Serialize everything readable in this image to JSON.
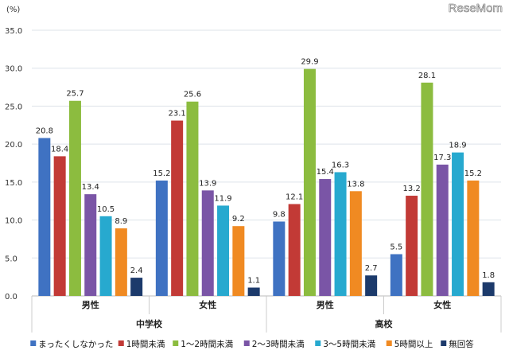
{
  "chart_data": {
    "type": "bar",
    "unit_label": "(%)",
    "watermark": "ReseMom",
    "ylim": [
      0,
      35
    ],
    "yticks": [
      "0.0",
      "5.0",
      "10.0",
      "15.0",
      "20.0",
      "25.0",
      "30.0",
      "35.0"
    ],
    "grid": true,
    "legend_position": "bottom",
    "groups": [
      {
        "label": "中学校",
        "categories": [
          "男性",
          "女性"
        ]
      },
      {
        "label": "高校",
        "categories": [
          "男性",
          "女性"
        ]
      }
    ],
    "categories": [
      "中学校 男性",
      "中学校 女性",
      "高校 男性",
      "高校 女性"
    ],
    "series": [
      {
        "name": "まったくしなかった",
        "color": "#3f72c2",
        "values": [
          20.8,
          15.2,
          9.8,
          5.5
        ]
      },
      {
        "name": "1時間未満",
        "color": "#c23a36",
        "values": [
          18.4,
          23.1,
          12.1,
          13.2
        ]
      },
      {
        "name": "1～2時間未満",
        "color": "#8cbc3f",
        "values": [
          25.7,
          25.6,
          29.9,
          28.1
        ]
      },
      {
        "name": "2～3時間未満",
        "color": "#7a55a6",
        "values": [
          13.4,
          13.9,
          15.4,
          17.3
        ]
      },
      {
        "name": "3～5時間未満",
        "color": "#27a9cf",
        "values": [
          10.5,
          11.9,
          16.3,
          18.9
        ]
      },
      {
        "name": "5時間以上",
        "color": "#f08a22",
        "values": [
          8.9,
          9.2,
          13.8,
          15.2
        ]
      },
      {
        "name": "無回答",
        "color": "#1c3a6b",
        "values": [
          2.4,
          1.1,
          2.7,
          1.8
        ]
      }
    ]
  }
}
